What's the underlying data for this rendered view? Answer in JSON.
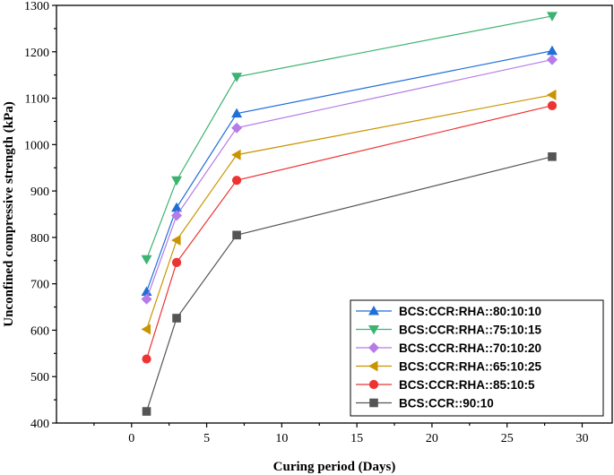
{
  "chart_data": {
    "type": "line",
    "title": "",
    "xlabel": "Curing period (Days)",
    "ylabel": "Unconfined compressive strength (kPa)",
    "xlim": [
      -5,
      32
    ],
    "ylim": [
      400,
      1300
    ],
    "xticks": [
      0,
      5,
      10,
      15,
      20,
      25,
      30
    ],
    "yticks": [
      400,
      500,
      600,
      700,
      800,
      900,
      1000,
      1100,
      1200,
      1300
    ],
    "x": [
      1,
      3,
      7,
      28
    ],
    "legend_position": "bottom-right",
    "series": [
      {
        "name": "BCS:CCR:RHA::80:10:10",
        "values": [
          683,
          864,
          1067,
          1202
        ],
        "color": "#1f6fd8",
        "marker": "triangle-up"
      },
      {
        "name": "BCS:CCR:RHA::75:10:15",
        "values": [
          753,
          923,
          1146,
          1277
        ],
        "color": "#3cb371",
        "marker": "triangle-down"
      },
      {
        "name": "BCS:CCR:RHA::70:10:20",
        "values": [
          667,
          847,
          1036,
          1183
        ],
        "color": "#b57be8",
        "marker": "diamond"
      },
      {
        "name": "BCS:CCR:RHA::65:10:25",
        "values": [
          602,
          794,
          978,
          1107
        ],
        "color": "#c99400",
        "marker": "triangle-left"
      },
      {
        "name": "BCS:CCR:RHA::85:10:5",
        "values": [
          538,
          746,
          923,
          1084
        ],
        "color": "#ee3333",
        "marker": "circle"
      },
      {
        "name": "BCS:CCR::90:10",
        "values": [
          425,
          626,
          805,
          974
        ],
        "color": "#555555",
        "marker": "square"
      }
    ]
  }
}
